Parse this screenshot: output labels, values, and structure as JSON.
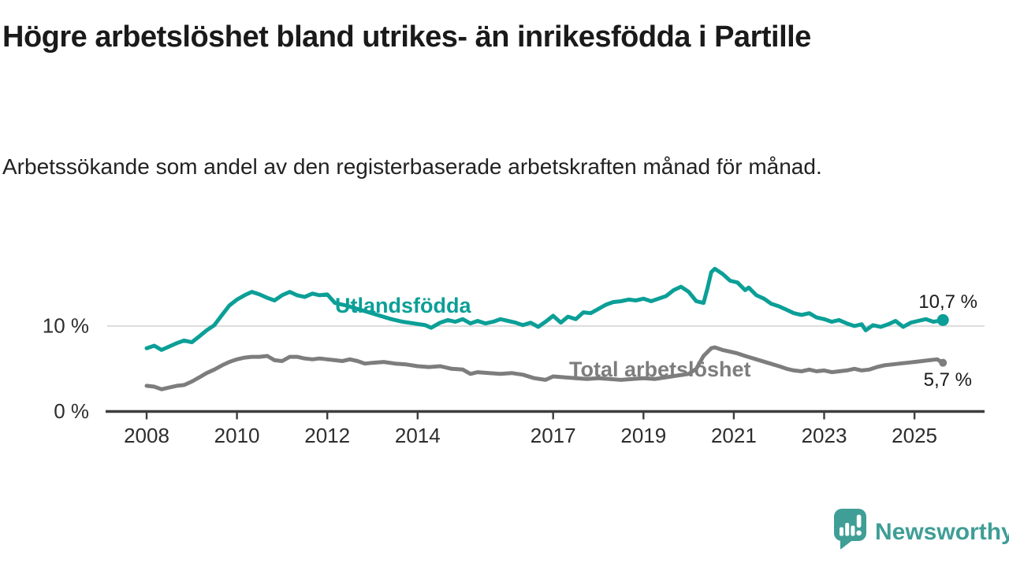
{
  "title": "Högre arbetslöshet bland utrikes- än inrikesfödda i Partille",
  "subtitle": "Arbetssökande som andel av den registerbaserade arbetskraften månad för månad.",
  "logo": {
    "text": "Newsworthy",
    "icon": "speech-bubble-bar-chart-exclamation",
    "color": "#3f9e96"
  },
  "colors": {
    "utlandsfodda": "#0b9f97",
    "total": "#7d7d7d",
    "annotation": "#1a1a1a",
    "axis": "#3d3d3d",
    "gridline": "#d2d2d2",
    "tick_text": "#2d2d2d"
  },
  "chart_data": {
    "type": "line",
    "title": "Högre arbetslöshet bland utrikes- än inrikesfödda i Partille",
    "subtitle": "Arbetssökande som andel av den registerbaserade arbetskraften månad för månad.",
    "xlabel": "",
    "ylabel": "",
    "x_unit": "decimal_year",
    "xlim": [
      2007.1,
      2026.6
    ],
    "ylim": [
      0,
      19
    ],
    "grid": "single horizontal gridline at 10",
    "legend_position": "inline labels on lines",
    "x_ticks": [
      "2008",
      "2010",
      "2012",
      "2014",
      "2017",
      "2019",
      "2021",
      "2023",
      "2025"
    ],
    "x_tick_years": [
      2008,
      2010,
      2012,
      2014,
      2017,
      2019,
      2021,
      2023,
      2025
    ],
    "y_ticks": [
      {
        "value": 0,
        "label": "0 %"
      },
      {
        "value": 10,
        "label": "10 %"
      }
    ],
    "series": [
      {
        "name": "Utlandsfödda",
        "color": "#0b9f97",
        "end_label": "10,7 %",
        "end_value": 10.7,
        "end_marker": true,
        "points": [
          [
            2008.0,
            7.4
          ],
          [
            2008.17,
            7.7
          ],
          [
            2008.33,
            7.2
          ],
          [
            2008.5,
            7.6
          ],
          [
            2008.67,
            8.0
          ],
          [
            2008.83,
            8.3
          ],
          [
            2009.0,
            8.1
          ],
          [
            2009.17,
            8.8
          ],
          [
            2009.33,
            9.5
          ],
          [
            2009.5,
            10.1
          ],
          [
            2009.67,
            11.3
          ],
          [
            2009.83,
            12.4
          ],
          [
            2010.0,
            13.1
          ],
          [
            2010.17,
            13.6
          ],
          [
            2010.33,
            14.0
          ],
          [
            2010.5,
            13.7
          ],
          [
            2010.67,
            13.3
          ],
          [
            2010.83,
            13.0
          ],
          [
            2011.0,
            13.6
          ],
          [
            2011.17,
            14.0
          ],
          [
            2011.33,
            13.6
          ],
          [
            2011.5,
            13.4
          ],
          [
            2011.67,
            13.8
          ],
          [
            2011.83,
            13.6
          ],
          [
            2012.0,
            13.7
          ],
          [
            2012.17,
            12.7
          ],
          [
            2012.42,
            12.4
          ],
          [
            2012.67,
            12.0
          ],
          [
            2012.92,
            11.6
          ],
          [
            2013.17,
            11.2
          ],
          [
            2013.42,
            10.8
          ],
          [
            2013.67,
            10.5
          ],
          [
            2013.92,
            10.3
          ],
          [
            2014.17,
            10.1
          ],
          [
            2014.3,
            9.8
          ],
          [
            2014.5,
            10.4
          ],
          [
            2014.67,
            10.7
          ],
          [
            2014.83,
            10.5
          ],
          [
            2015.0,
            10.8
          ],
          [
            2015.17,
            10.3
          ],
          [
            2015.33,
            10.6
          ],
          [
            2015.5,
            10.3
          ],
          [
            2015.67,
            10.5
          ],
          [
            2015.83,
            10.8
          ],
          [
            2016.0,
            10.6
          ],
          [
            2016.17,
            10.4
          ],
          [
            2016.33,
            10.1
          ],
          [
            2016.5,
            10.4
          ],
          [
            2016.67,
            9.9
          ],
          [
            2016.83,
            10.5
          ],
          [
            2017.0,
            11.2
          ],
          [
            2017.17,
            10.4
          ],
          [
            2017.33,
            11.1
          ],
          [
            2017.5,
            10.8
          ],
          [
            2017.67,
            11.6
          ],
          [
            2017.83,
            11.5
          ],
          [
            2018.0,
            12.0
          ],
          [
            2018.17,
            12.5
          ],
          [
            2018.33,
            12.8
          ],
          [
            2018.5,
            12.9
          ],
          [
            2018.67,
            13.1
          ],
          [
            2018.83,
            13.0
          ],
          [
            2019.0,
            13.2
          ],
          [
            2019.17,
            12.9
          ],
          [
            2019.33,
            13.2
          ],
          [
            2019.5,
            13.5
          ],
          [
            2019.67,
            14.2
          ],
          [
            2019.83,
            14.6
          ],
          [
            2020.0,
            14.0
          ],
          [
            2020.17,
            12.9
          ],
          [
            2020.33,
            12.7
          ],
          [
            2020.42,
            14.5
          ],
          [
            2020.5,
            16.3
          ],
          [
            2020.58,
            16.7
          ],
          [
            2020.75,
            16.1
          ],
          [
            2020.92,
            15.3
          ],
          [
            2021.08,
            15.1
          ],
          [
            2021.25,
            14.2
          ],
          [
            2021.33,
            14.5
          ],
          [
            2021.5,
            13.6
          ],
          [
            2021.67,
            13.2
          ],
          [
            2021.83,
            12.6
          ],
          [
            2022.0,
            12.3
          ],
          [
            2022.17,
            11.9
          ],
          [
            2022.33,
            11.5
          ],
          [
            2022.5,
            11.3
          ],
          [
            2022.67,
            11.5
          ],
          [
            2022.83,
            11.0
          ],
          [
            2023.0,
            10.8
          ],
          [
            2023.17,
            10.5
          ],
          [
            2023.33,
            10.7
          ],
          [
            2023.5,
            10.3
          ],
          [
            2023.67,
            10.0
          ],
          [
            2023.83,
            10.2
          ],
          [
            2023.92,
            9.5
          ],
          [
            2024.08,
            10.1
          ],
          [
            2024.25,
            9.9
          ],
          [
            2024.42,
            10.2
          ],
          [
            2024.58,
            10.6
          ],
          [
            2024.75,
            9.9
          ],
          [
            2024.92,
            10.4
          ],
          [
            2025.08,
            10.6
          ],
          [
            2025.25,
            10.8
          ],
          [
            2025.42,
            10.5
          ],
          [
            2025.63,
            10.7
          ]
        ]
      },
      {
        "name": "Total arbetslöshet",
        "color": "#7d7d7d",
        "end_label": "5,7 %",
        "end_value": 5.7,
        "end_marker": true,
        "points": [
          [
            2008.0,
            3.0
          ],
          [
            2008.17,
            2.9
          ],
          [
            2008.33,
            2.6
          ],
          [
            2008.5,
            2.8
          ],
          [
            2008.67,
            3.0
          ],
          [
            2008.83,
            3.1
          ],
          [
            2009.0,
            3.5
          ],
          [
            2009.17,
            4.0
          ],
          [
            2009.33,
            4.5
          ],
          [
            2009.5,
            4.9
          ],
          [
            2009.67,
            5.4
          ],
          [
            2009.83,
            5.8
          ],
          [
            2010.0,
            6.1
          ],
          [
            2010.17,
            6.3
          ],
          [
            2010.33,
            6.4
          ],
          [
            2010.5,
            6.4
          ],
          [
            2010.67,
            6.5
          ],
          [
            2010.83,
            6.0
          ],
          [
            2011.0,
            5.9
          ],
          [
            2011.17,
            6.4
          ],
          [
            2011.33,
            6.4
          ],
          [
            2011.5,
            6.2
          ],
          [
            2011.67,
            6.1
          ],
          [
            2011.83,
            6.2
          ],
          [
            2012.0,
            6.1
          ],
          [
            2012.17,
            6.0
          ],
          [
            2012.33,
            5.9
          ],
          [
            2012.5,
            6.1
          ],
          [
            2012.67,
            5.9
          ],
          [
            2012.83,
            5.6
          ],
          [
            2013.0,
            5.7
          ],
          [
            2013.25,
            5.8
          ],
          [
            2013.5,
            5.6
          ],
          [
            2013.75,
            5.5
          ],
          [
            2014.0,
            5.3
          ],
          [
            2014.25,
            5.2
          ],
          [
            2014.5,
            5.3
          ],
          [
            2014.75,
            5.0
          ],
          [
            2015.0,
            4.9
          ],
          [
            2015.17,
            4.4
          ],
          [
            2015.33,
            4.6
          ],
          [
            2015.58,
            4.5
          ],
          [
            2015.83,
            4.4
          ],
          [
            2016.08,
            4.5
          ],
          [
            2016.33,
            4.3
          ],
          [
            2016.58,
            3.9
          ],
          [
            2016.83,
            3.7
          ],
          [
            2017.0,
            4.1
          ],
          [
            2017.25,
            4.0
          ],
          [
            2017.5,
            3.9
          ],
          [
            2017.75,
            3.8
          ],
          [
            2018.0,
            3.9
          ],
          [
            2018.25,
            3.8
          ],
          [
            2018.5,
            3.7
          ],
          [
            2018.75,
            3.8
          ],
          [
            2019.0,
            3.9
          ],
          [
            2019.25,
            3.8
          ],
          [
            2019.5,
            4.0
          ],
          [
            2019.75,
            4.2
          ],
          [
            2020.0,
            4.4
          ],
          [
            2020.17,
            5.0
          ],
          [
            2020.33,
            6.5
          ],
          [
            2020.5,
            7.4
          ],
          [
            2020.58,
            7.5
          ],
          [
            2020.75,
            7.2
          ],
          [
            2020.92,
            7.0
          ],
          [
            2021.08,
            6.8
          ],
          [
            2021.25,
            6.5
          ],
          [
            2021.5,
            6.1
          ],
          [
            2021.75,
            5.7
          ],
          [
            2022.0,
            5.3
          ],
          [
            2022.17,
            5.0
          ],
          [
            2022.33,
            4.8
          ],
          [
            2022.5,
            4.7
          ],
          [
            2022.67,
            4.9
          ],
          [
            2022.83,
            4.7
          ],
          [
            2023.0,
            4.8
          ],
          [
            2023.17,
            4.6
          ],
          [
            2023.33,
            4.7
          ],
          [
            2023.5,
            4.8
          ],
          [
            2023.67,
            5.0
          ],
          [
            2023.83,
            4.8
          ],
          [
            2024.0,
            4.9
          ],
          [
            2024.17,
            5.2
          ],
          [
            2024.33,
            5.4
          ],
          [
            2024.5,
            5.5
          ],
          [
            2024.67,
            5.6
          ],
          [
            2024.83,
            5.7
          ],
          [
            2025.0,
            5.8
          ],
          [
            2025.17,
            5.9
          ],
          [
            2025.33,
            6.0
          ],
          [
            2025.5,
            6.1
          ],
          [
            2025.63,
            5.7
          ]
        ]
      }
    ]
  }
}
